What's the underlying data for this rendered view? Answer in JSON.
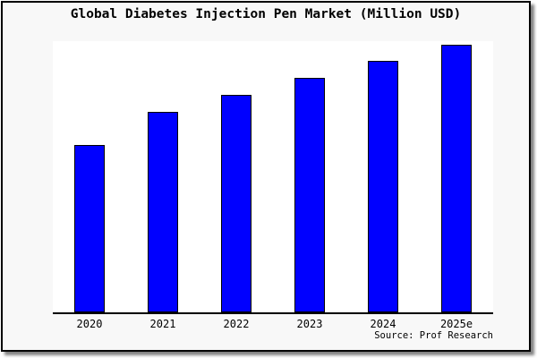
{
  "figure": {
    "title": "Global Diabetes Injection Pen Market (Million USD)",
    "source_credit": "Source: Prof Research"
  },
  "chart_data": {
    "type": "bar",
    "title": "Global Diabetes Injection Pen Market (Million USD)",
    "categories": [
      "2020",
      "2021",
      "2022",
      "2023",
      "2024",
      "2025e"
    ],
    "values": [
      100,
      120,
      130,
      140,
      150,
      160
    ],
    "value_note": "y-axis is unlabeled in the image; values are relative bar heights estimated from pixels with 2020 indexed to 100",
    "xlabel": "",
    "ylabel": "",
    "ylim": [
      0,
      162
    ],
    "grid": false,
    "legend": "none",
    "bar_color": "#0000ff",
    "bar_border_color": "#000000",
    "plot_background": "#ffffff",
    "panel_background": "#f8f8f8",
    "frame_border_color": "#000000",
    "axis_color": "#000000"
  }
}
